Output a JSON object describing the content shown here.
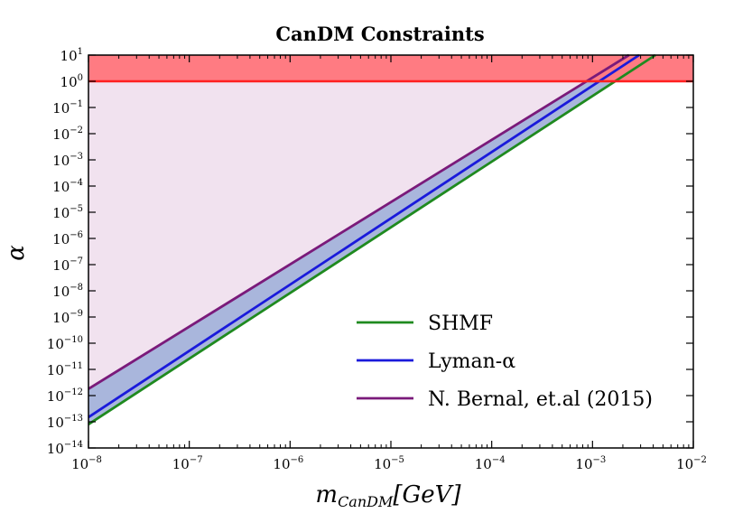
{
  "chart_data": {
    "type": "line",
    "title": "CanDM Constraints",
    "xlabel_main": "m",
    "xlabel_sub": "CanDM",
    "xlabel_unit": "[GeV]",
    "ylabel": "α",
    "xscale": "log",
    "yscale": "log",
    "xlim": [
      1e-08,
      0.01
    ],
    "ylim": [
      1e-14,
      10
    ],
    "x_tick_exponents": [
      -8,
      -7,
      -6,
      -5,
      -4,
      -3,
      -2
    ],
    "y_tick_exponents": [
      1,
      0,
      -1,
      -2,
      -3,
      -4,
      -5,
      -6,
      -7,
      -8,
      -9,
      -10,
      -11,
      -12,
      -13,
      -14
    ],
    "tick_base": "10",
    "grid": false,
    "legend_position": "lower-right",
    "series": [
      {
        "name": "SHMF",
        "color": "#1f8a1f",
        "x": [
          1e-08,
          0.0042
        ],
        "y": [
          8e-14,
          10
        ]
      },
      {
        "name": "Lyman-α",
        "color": "#1a1adb",
        "x": [
          1e-08,
          0.0029
        ],
        "y": [
          1.5e-13,
          10
        ]
      },
      {
        "name": "N. Bernal, et.al (2015)",
        "color": "#7a1a7a",
        "x": [
          1e-08,
          0.0023
        ],
        "y": [
          1.8e-12,
          10
        ]
      }
    ],
    "horizontal_line": {
      "y": 1,
      "color": "#ff2020"
    },
    "regions": {
      "excluded_band_color": "#ff7b82",
      "triangle_fill_color": "#f1e2ef",
      "between_fill_color": "#a9b6dc"
    }
  }
}
